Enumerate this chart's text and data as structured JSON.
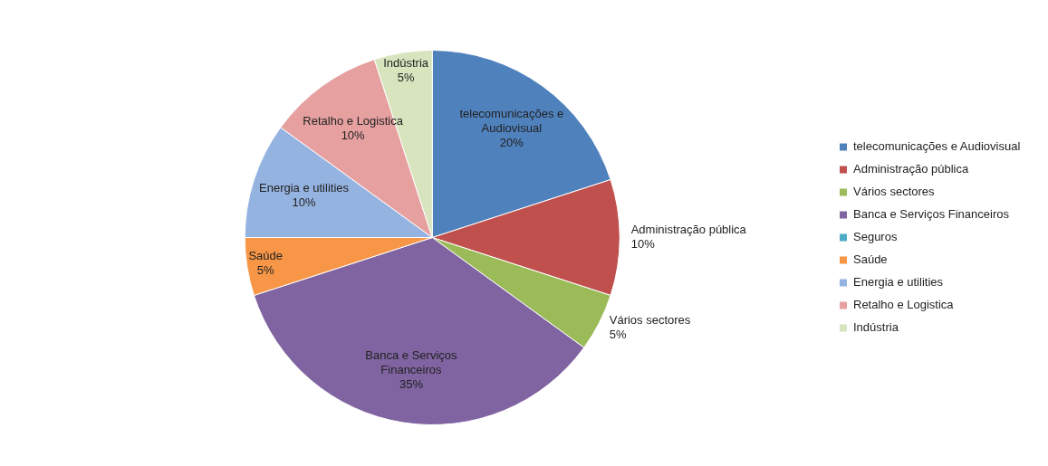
{
  "chart_data": {
    "type": "pie",
    "categories": [
      "telecomunicações e Audiovisual",
      "Administração pública",
      "Vários sectores",
      "Banca e Serviços Financeiros",
      "Seguros",
      "Saúde",
      "Energia e utilities",
      "Retalho e Logistica",
      "Indústria"
    ],
    "values": [
      20,
      10,
      5,
      35,
      0,
      5,
      10,
      10,
      5
    ],
    "colors": [
      "#4f81bd",
      "#c0504d",
      "#9bbb59",
      "#8064a2",
      "#4bacc6",
      "#f79646",
      "#95b3e0",
      "#e6a0a0",
      "#d7e4bd"
    ],
    "value_labels": [
      "20%",
      "10%",
      "5%",
      "35%",
      null,
      "5%",
      "10%",
      "10%",
      "5%"
    ],
    "legend": "right"
  }
}
